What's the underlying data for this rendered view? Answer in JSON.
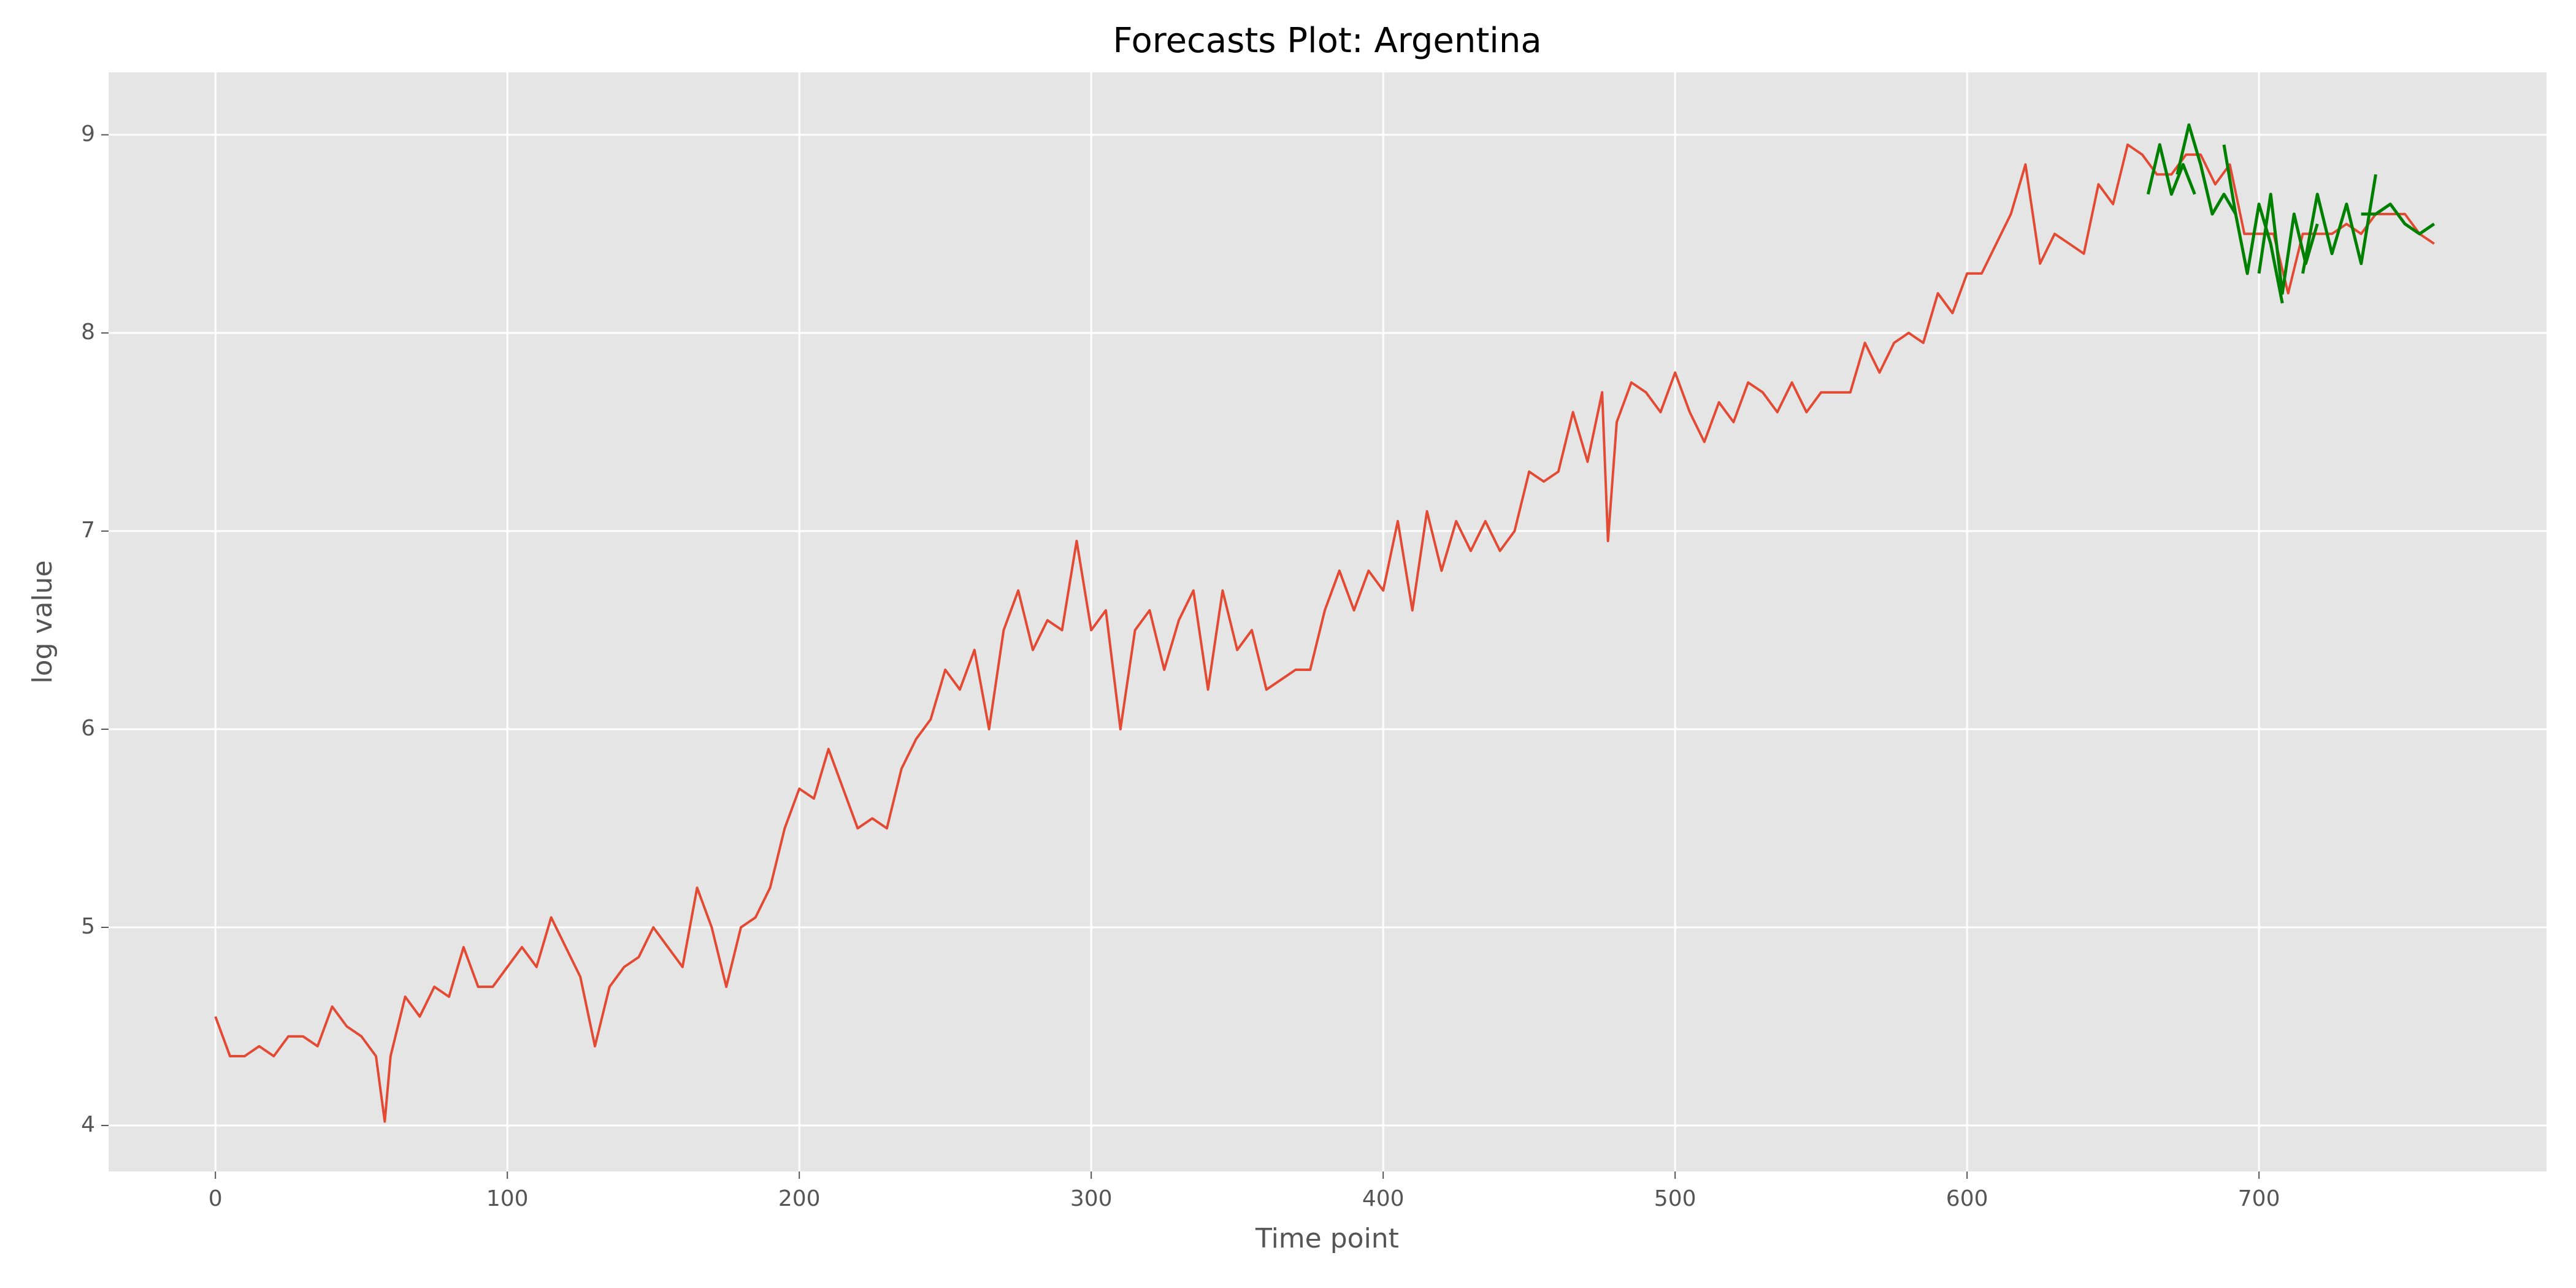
{
  "chart_data": {
    "type": "line",
    "title": "Forecasts Plot: Argentina",
    "xlabel": "Time point",
    "ylabel": "log value",
    "xlim": [
      -36.6,
      798.5
    ],
    "ylim": [
      3.768,
      9.315
    ],
    "xticks": [
      0,
      100,
      200,
      300,
      400,
      500,
      600,
      700
    ],
    "yticks": [
      4,
      5,
      6,
      7,
      8,
      9
    ],
    "grid": true,
    "series": [
      {
        "color": "#e24a33",
        "x": [
          0,
          5,
          10,
          15,
          20,
          25,
          30,
          35,
          40,
          45,
          50,
          55,
          58,
          60,
          65,
          70,
          75,
          80,
          85,
          90,
          95,
          100,
          105,
          110,
          115,
          120,
          125,
          130,
          135,
          140,
          145,
          150,
          155,
          160,
          165,
          170,
          175,
          180,
          185,
          190,
          195,
          200,
          205,
          210,
          215,
          220,
          225,
          230,
          235,
          240,
          245,
          250,
          255,
          260,
          265,
          270,
          275,
          280,
          285,
          290,
          295,
          300,
          305,
          310,
          315,
          320,
          325,
          330,
          335,
          340,
          345,
          350,
          355,
          360,
          365,
          370,
          375,
          380,
          385,
          390,
          395,
          400,
          405,
          410,
          415,
          420,
          425,
          430,
          435,
          440,
          445,
          450,
          455,
          460,
          465,
          470,
          475,
          477,
          480,
          485,
          490,
          495,
          500,
          505,
          510,
          515,
          520,
          525,
          530,
          535,
          540,
          545,
          550,
          555,
          560,
          565,
          570,
          575,
          580,
          585,
          590,
          595,
          600,
          605,
          610,
          615,
          620,
          625,
          630,
          635,
          640,
          645,
          650,
          655,
          660,
          665,
          670,
          675,
          680,
          685,
          690,
          695,
          700,
          705,
          710,
          715,
          720,
          725,
          730,
          735,
          740,
          745,
          750,
          755,
          760
        ],
        "values": [
          4.55,
          4.35,
          4.35,
          4.4,
          4.35,
          4.45,
          4.45,
          4.4,
          4.6,
          4.5,
          4.45,
          4.35,
          4.02,
          4.35,
          4.65,
          4.55,
          4.7,
          4.65,
          4.9,
          4.7,
          4.7,
          4.8,
          4.9,
          4.8,
          5.05,
          4.9,
          4.75,
          4.4,
          4.7,
          4.8,
          4.85,
          5.0,
          4.9,
          4.8,
          5.2,
          5.0,
          4.7,
          5.0,
          5.05,
          5.2,
          5.5,
          5.7,
          5.65,
          5.9,
          5.7,
          5.5,
          5.55,
          5.5,
          5.8,
          5.95,
          6.05,
          6.3,
          6.2,
          6.4,
          6.0,
          6.5,
          6.7,
          6.4,
          6.55,
          6.5,
          6.95,
          6.5,
          6.6,
          6.0,
          6.5,
          6.6,
          6.3,
          6.55,
          6.7,
          6.2,
          6.7,
          6.4,
          6.5,
          6.2,
          6.25,
          6.3,
          6.3,
          6.6,
          6.8,
          6.6,
          6.8,
          6.7,
          7.05,
          6.6,
          7.1,
          6.8,
          7.05,
          6.9,
          7.05,
          6.9,
          7.0,
          7.3,
          7.25,
          7.3,
          7.6,
          7.35,
          7.7,
          6.95,
          7.55,
          7.75,
          7.7,
          7.6,
          7.8,
          7.6,
          7.45,
          7.65,
          7.55,
          7.75,
          7.7,
          7.6,
          7.75,
          7.6,
          7.7,
          7.7,
          7.7,
          7.95,
          7.8,
          7.95,
          8.0,
          7.95,
          8.2,
          8.1,
          8.3,
          8.3,
          8.45,
          8.6,
          8.85,
          8.35,
          8.5,
          8.45,
          8.4,
          8.75,
          8.65,
          8.95,
          8.9,
          8.8,
          8.8,
          8.9,
          8.9,
          8.75,
          8.85,
          8.5,
          8.5,
          8.5,
          8.2,
          8.5,
          8.5,
          8.5,
          8.55,
          8.5,
          8.6,
          8.6,
          8.6,
          8.5,
          8.45
        ]
      },
      {
        "color": "#008000",
        "x": [
          662,
          666,
          670,
          674,
          678
        ],
        "values": [
          8.7,
          8.95,
          8.7,
          8.85,
          8.7
        ]
      },
      {
        "color": "#008000",
        "x": [
          672,
          676,
          680,
          684,
          688,
          692
        ],
        "values": [
          8.8,
          9.05,
          8.85,
          8.6,
          8.7,
          8.6
        ]
      },
      {
        "color": "#008000",
        "x": [
          688,
          692,
          696,
          700,
          704,
          708
        ],
        "values": [
          8.95,
          8.6,
          8.3,
          8.65,
          8.45,
          8.15
        ]
      },
      {
        "color": "#008000",
        "x": [
          700,
          704,
          708,
          712,
          716,
          720
        ],
        "values": [
          8.3,
          8.7,
          8.2,
          8.6,
          8.35,
          8.55
        ]
      },
      {
        "color": "#008000",
        "x": [
          715,
          720,
          725,
          730,
          735,
          740
        ],
        "values": [
          8.3,
          8.7,
          8.4,
          8.65,
          8.35,
          8.8
        ]
      },
      {
        "color": "#008000",
        "x": [
          735,
          740,
          745,
          750,
          755,
          760
        ],
        "values": [
          8.6,
          8.6,
          8.65,
          8.55,
          8.5,
          8.55
        ]
      }
    ]
  }
}
